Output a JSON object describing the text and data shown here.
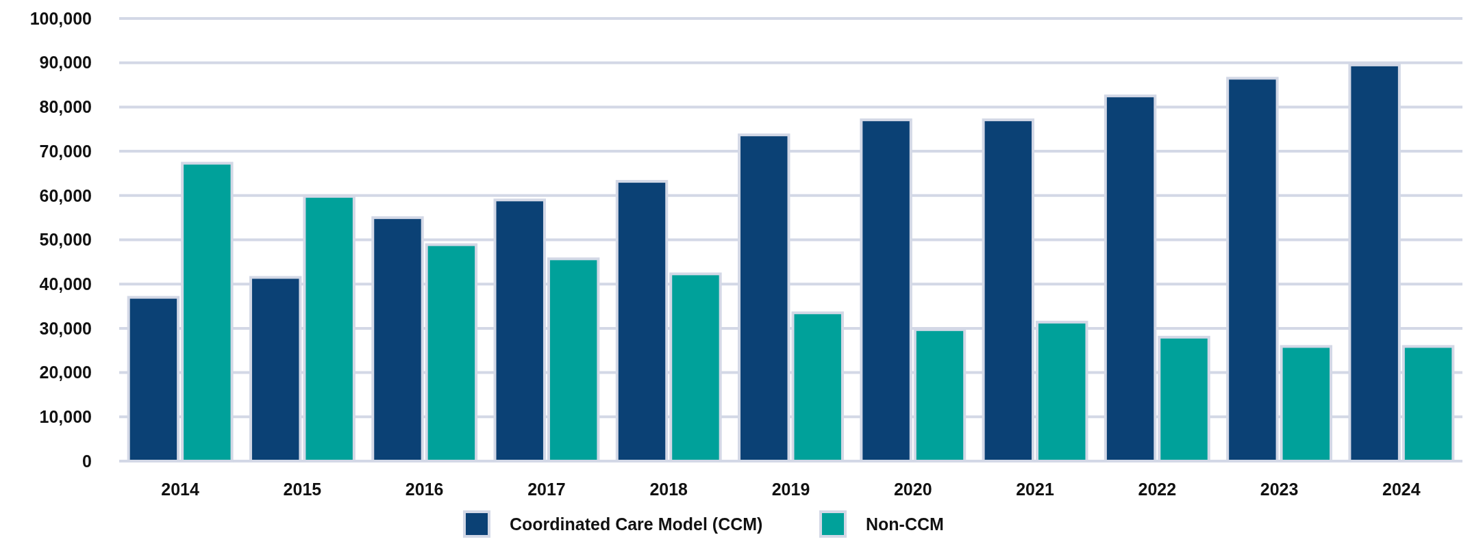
{
  "chart_data": {
    "type": "bar",
    "categories": [
      "2014",
      "2015",
      "2016",
      "2017",
      "2018",
      "2019",
      "2020",
      "2021",
      "2022",
      "2023",
      "2024"
    ],
    "series": [
      {
        "name": "Coordinated Care Model (CCM)",
        "color": "#0b4175",
        "values": [
          37000,
          41500,
          55000,
          59000,
          63200,
          73700,
          77100,
          77100,
          82500,
          86500,
          89500
        ]
      },
      {
        "name": "Non-CCM",
        "color": "#00a19a",
        "values": [
          67300,
          59800,
          48900,
          45700,
          42300,
          33500,
          29700,
          31400,
          28000,
          25900,
          25900
        ]
      }
    ],
    "ylim": [
      0,
      100000
    ],
    "yticks": [
      0,
      {
        "value": 10000,
        "label": "10,000"
      },
      {
        "value": 20000,
        "label": "20,000"
      },
      {
        "value": 30000,
        "label": "30,000"
      },
      {
        "value": 40000,
        "label": "40,000"
      },
      {
        "value": 50000,
        "label": "50,000"
      },
      {
        "value": 60000,
        "label": "60,000"
      },
      {
        "value": 70000,
        "label": "70,000"
      },
      {
        "value": 80000,
        "label": "80,000"
      },
      {
        "value": 90000,
        "label": "90,000"
      },
      {
        "value": 100000,
        "label": "100,000"
      }
    ],
    "grid": "y",
    "legend": "bottom"
  }
}
